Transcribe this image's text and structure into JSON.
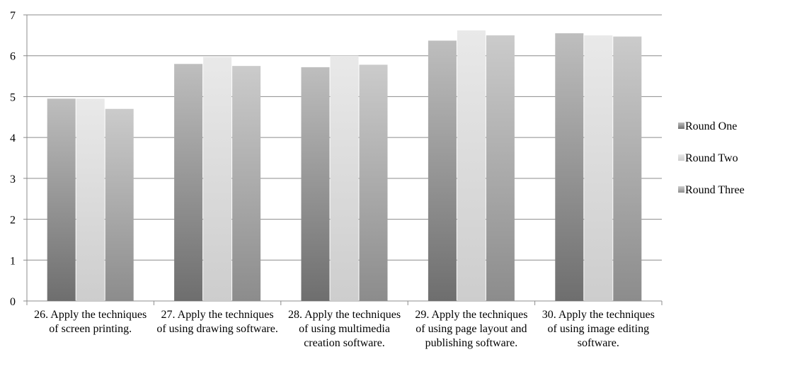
{
  "chart_data": {
    "type": "bar",
    "categories": [
      "26.  Apply the techniques of screen printing.",
      "27.  Apply the techniques of using drawing software.",
      "28.  Apply the techniques of using multimedia creation software.",
      "29.  Apply the techniques of using page layout and publishing software.",
      "30.  Apply the techniques of using image editing software."
    ],
    "series": [
      {
        "name": "Round One",
        "color": "#6e6e6e",
        "values": [
          4.95,
          5.8,
          5.72,
          6.37,
          6.55
        ]
      },
      {
        "name": "Round Two",
        "color": "#cdcdcd",
        "values": [
          4.95,
          5.97,
          6.0,
          6.62,
          6.5
        ]
      },
      {
        "name": "Round Three",
        "color": "#8c8c8c",
        "values": [
          4.7,
          5.75,
          5.78,
          6.5,
          6.47
        ]
      }
    ],
    "ylim": [
      0,
      7
    ],
    "yticks": [
      0,
      1,
      2,
      3,
      4,
      5,
      6,
      7
    ],
    "grid": true,
    "legend": "right"
  }
}
